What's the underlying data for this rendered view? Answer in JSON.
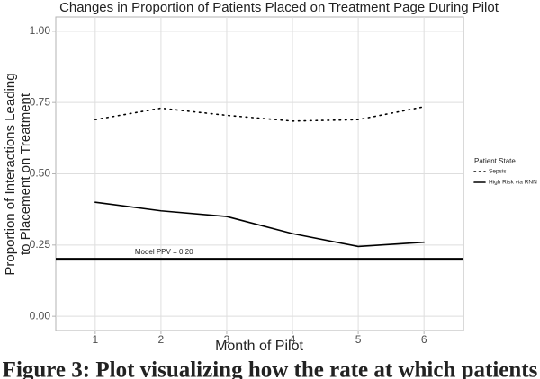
{
  "chart_data": {
    "type": "line",
    "title": "Changes in Proportion of Patients Placed on Treatment Page During Pilot",
    "x_label": "Month of Pilot",
    "y_label": [
      "Proportion of Interactions Leading",
      "to Placement on Treatment"
    ],
    "x": [
      1,
      2,
      3,
      4,
      5,
      6
    ],
    "series": [
      {
        "name": "Sepsis",
        "color": "#000000",
        "linestyle": "dotted",
        "values": [
          0.69,
          0.73,
          0.705,
          0.685,
          0.69,
          0.735
        ]
      },
      {
        "name": "High Risk via RNN",
        "color": "#000000",
        "linestyle": "solid",
        "values": [
          0.4,
          0.37,
          0.35,
          0.29,
          0.245,
          0.26
        ]
      }
    ],
    "hline": {
      "value": 0.2,
      "label": "Model PPV = 0.20"
    },
    "legend_title": "Patient State",
    "legend_position": "right",
    "xlim": [
      0.4,
      6.6
    ],
    "xticks": [
      1,
      2,
      3,
      4,
      5,
      6
    ],
    "ylim": [
      -0.05,
      1.05
    ],
    "yticks": [
      {
        "value": 0,
        "label": "0.00"
      },
      {
        "value": 0.25,
        "label": "0.25"
      },
      {
        "value": 0.5,
        "label": "0.50"
      },
      {
        "value": 0.75,
        "label": "0.75"
      },
      {
        "value": 1,
        "label": "1.00"
      }
    ],
    "grid": true,
    "caption": "Figure 3: Plot visualizing how the rate at which patients"
  }
}
